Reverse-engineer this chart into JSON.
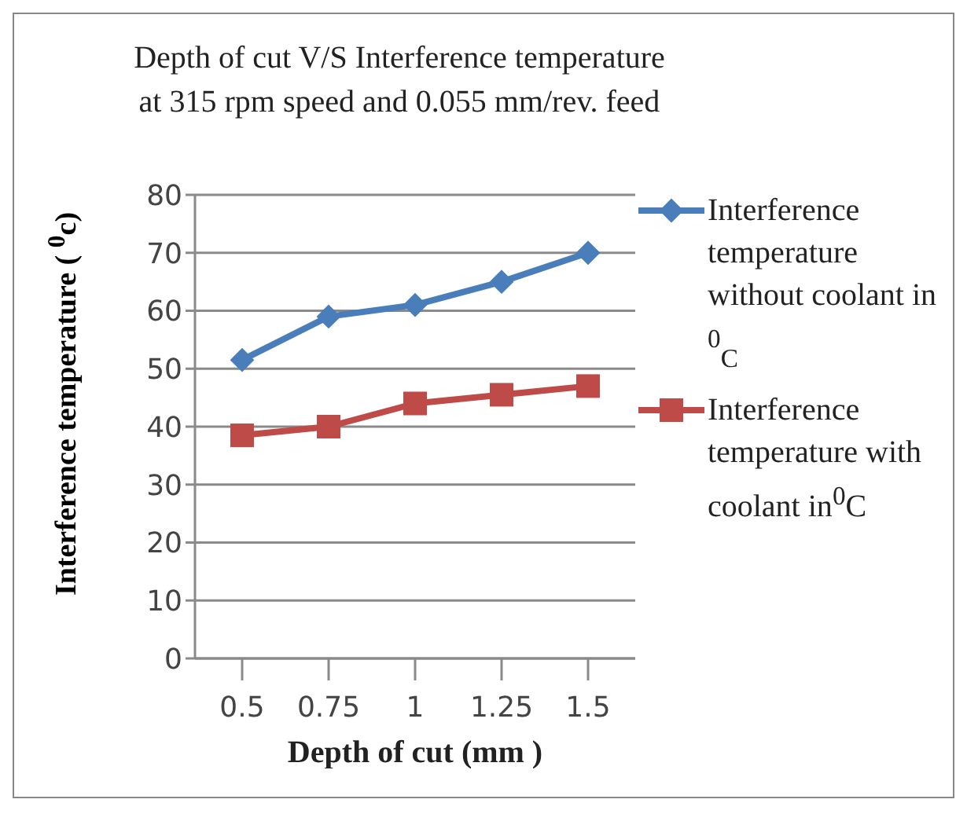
{
  "chart_data": {
    "type": "line",
    "title": "Depth of cut V/S  Interference temperature",
    "subtitle": "at 315  rpm  speed and 0.055  mm/rev.  feed",
    "xlabel": "Depth  of  cut (mm  )",
    "ylabel": "Interference  temperature  ( $^{0}$c)",
    "categories": [
      "0.5",
      "0.75",
      "1",
      "1.25",
      "1.5"
    ],
    "series": [
      {
        "name": "Interference temperature without coolant in $^{0}$$_{C}$",
        "color": "#4a7ebb",
        "marker": "diamond",
        "values": [
          51.5,
          59,
          61,
          65,
          70
        ]
      },
      {
        "name": "Interference temperature with coolant in$^{0}$C",
        "color": "#be4b48",
        "marker": "square",
        "values": [
          38.5,
          40,
          44,
          45.5,
          47
        ]
      }
    ],
    "ylim": [
      0,
      80
    ],
    "yticks": [
      0,
      10,
      20,
      30,
      40,
      50,
      60,
      70,
      80
    ],
    "grid": "y",
    "legend": "right",
    "line_style": "solid"
  }
}
